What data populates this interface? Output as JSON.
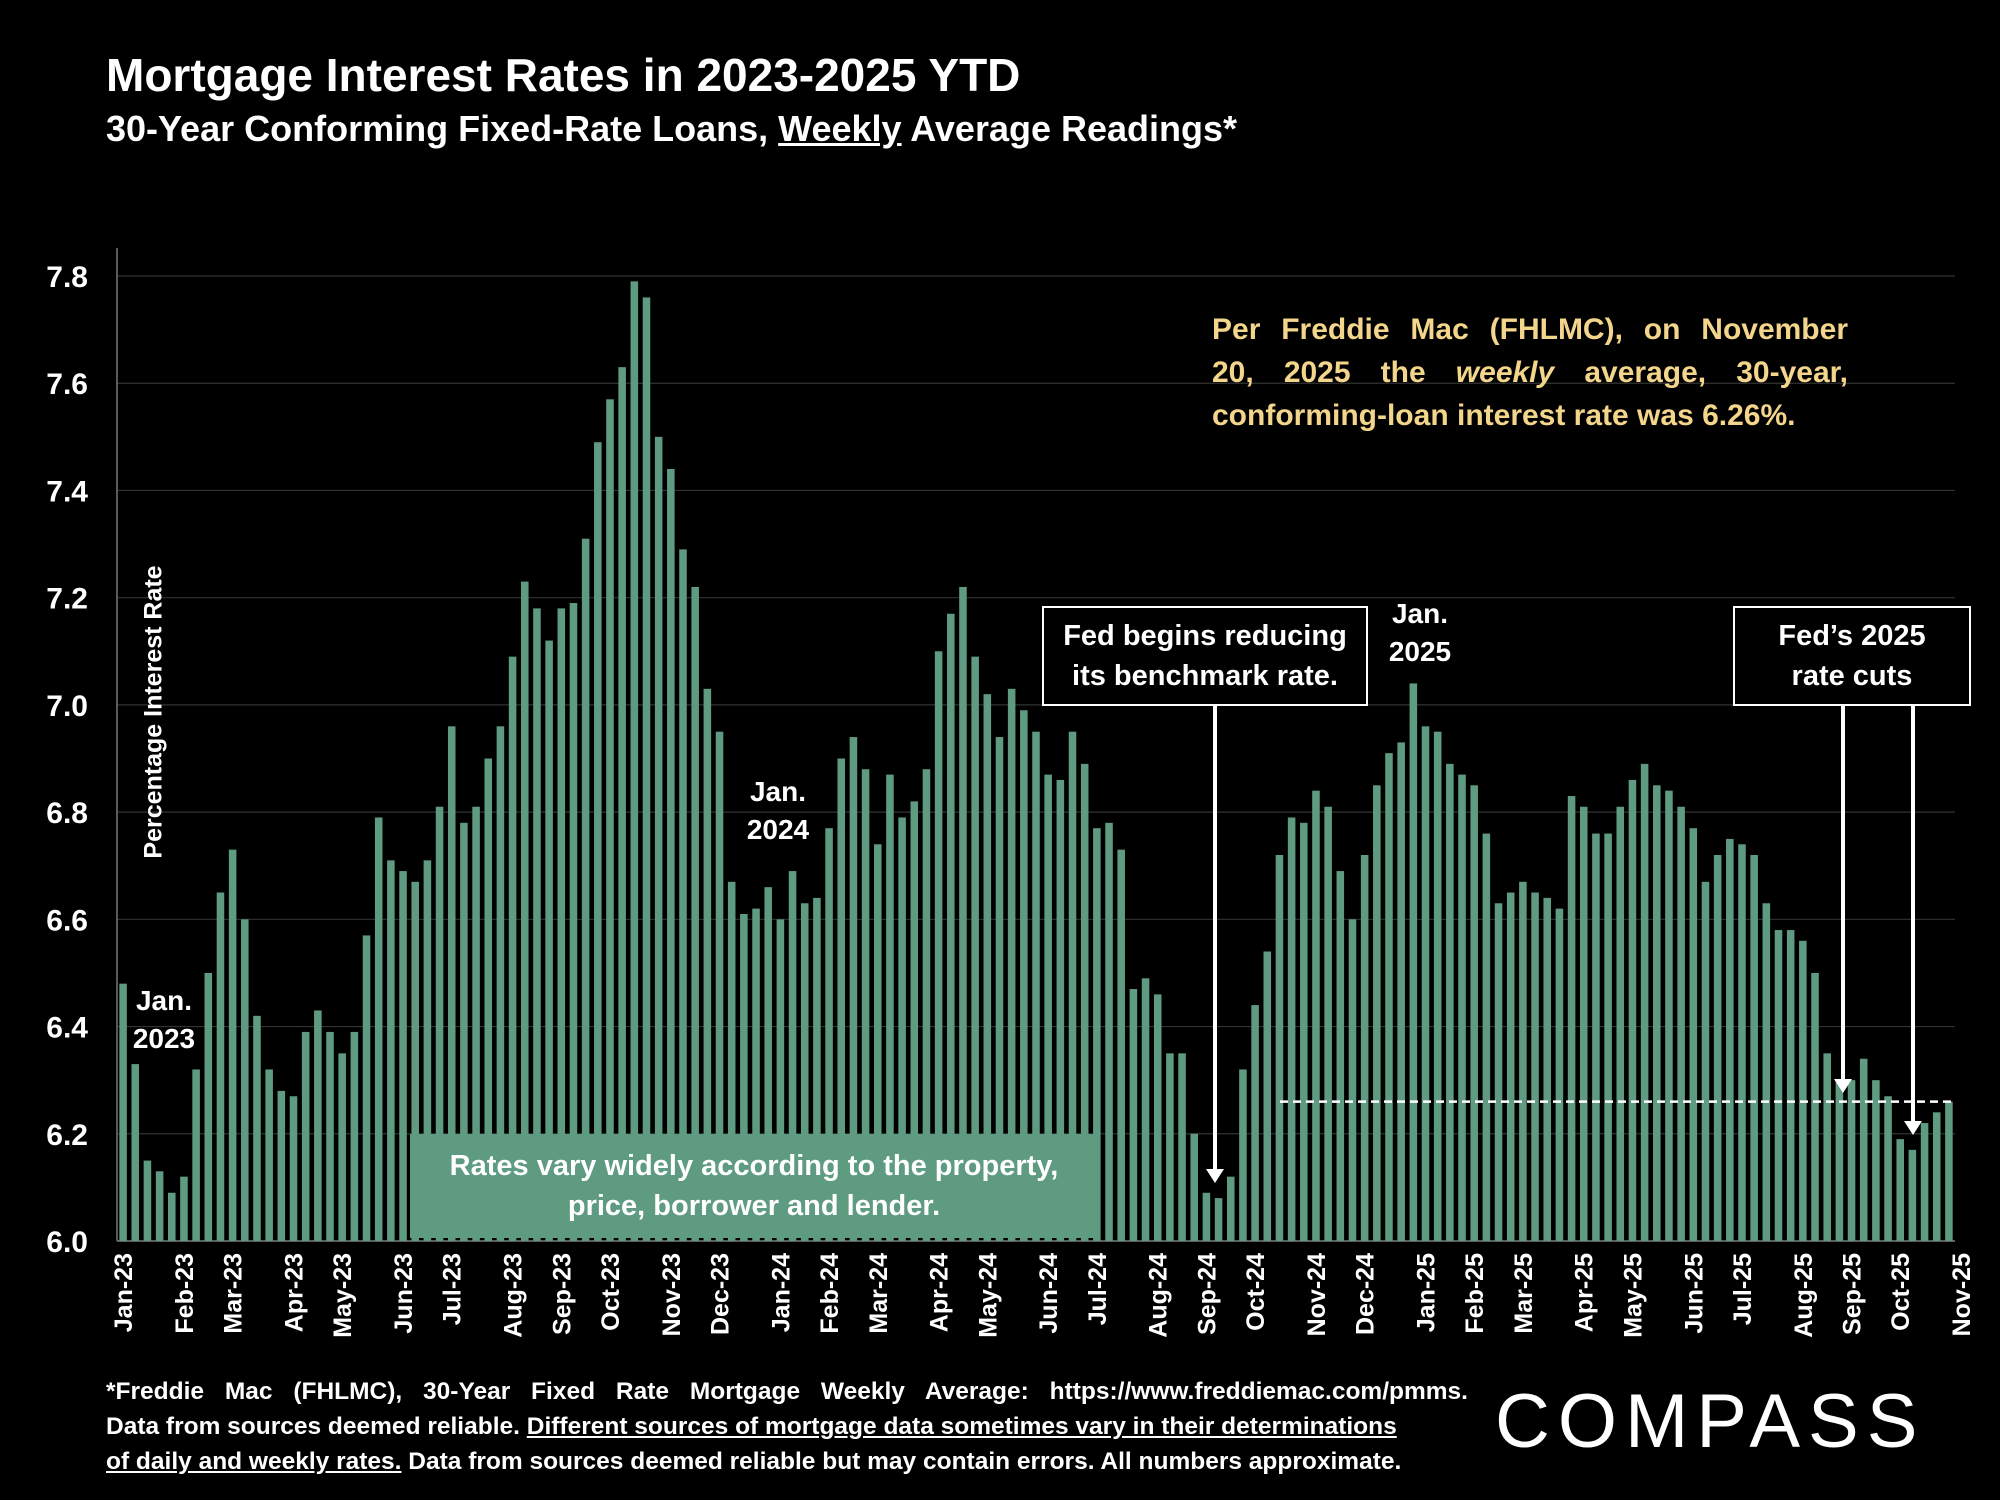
{
  "title": "Mortgage Interest Rates in 2023-2025 YTD",
  "subtitle": {
    "before": "30-Year Conforming Fixed-Rate Loans,",
    "underlined": "Weekly",
    "after": "Average Readings*"
  },
  "callout": {
    "line1": "Per Freddie Mac (FHLMC), on November",
    "line2_a": "20, 2025 the",
    "line2_em": "weekly",
    "line2_b": "average, 30-year,",
    "line3": "conforming-loan interest rate was 6.26%."
  },
  "fed_begins_box": {
    "line1": "Fed begins reducing",
    "line2": "its benchmark rate."
  },
  "fed_cuts_box": {
    "line1": "Fed’s 2025",
    "line2": "rate cuts"
  },
  "rates_note": {
    "line1": "Rates vary widely according to the property,",
    "line2": "price, borrower and lender."
  },
  "year_labels": {
    "y2023": {
      "line1": "Jan.",
      "line2": "2023"
    },
    "y2024": {
      "line1": "Jan.",
      "line2": "2024"
    },
    "y2025": {
      "line1": "Jan.",
      "line2": "2025"
    }
  },
  "footer": {
    "line1": "*Freddie Mac (FHLMC), 30-Year Fixed Rate Mortgage Weekly Average:  https://www.freddiemac.com/pmms.",
    "line2_a": "Data from sources deemed reliable.",
    "line2_u": "Different sources of mortgage data sometimes vary in their determinations",
    "line3_u": "of daily and weekly rates.",
    "line3_b": "Data from sources deemed reliable but may contain errors. All numbers approximate."
  },
  "logo": "COMPASS",
  "colors": {
    "bar": "#5e9b80",
    "background": "#000000",
    "callout": "#f3d58b",
    "grid": "#333333"
  },
  "chart_data": {
    "type": "bar",
    "title": "Mortgage Interest Rates in 2023-2025 YTD",
    "ylabel": "Percentage Interest  Rate",
    "xlabel": "",
    "ylim": [
      6.0,
      7.8
    ],
    "yticks": [
      "6.0",
      "6.2",
      "6.4",
      "6.6",
      "6.8",
      "7.0",
      "7.2",
      "7.4",
      "7.6",
      "7.8"
    ],
    "grid": true,
    "x_tick_labels": [
      {
        "label": "Jan-23",
        "index": 0
      },
      {
        "label": "Feb-23",
        "index": 5
      },
      {
        "label": "Mar-23",
        "index": 9
      },
      {
        "label": "Apr-23",
        "index": 14
      },
      {
        "label": "May-23",
        "index": 18
      },
      {
        "label": "Jun-23",
        "index": 23
      },
      {
        "label": "Jul-23",
        "index": 27
      },
      {
        "label": "Aug-23",
        "index": 32
      },
      {
        "label": "Sep-23",
        "index": 36
      },
      {
        "label": "Oct-23",
        "index": 40
      },
      {
        "label": "Nov-23",
        "index": 45
      },
      {
        "label": "Dec-23",
        "index": 49
      },
      {
        "label": "Jan-24",
        "index": 54
      },
      {
        "label": "Feb-24",
        "index": 58
      },
      {
        "label": "Mar-24",
        "index": 62
      },
      {
        "label": "Apr-24",
        "index": 67
      },
      {
        "label": "May-24",
        "index": 71
      },
      {
        "label": "Jun-24",
        "index": 76
      },
      {
        "label": "Jul-24",
        "index": 80
      },
      {
        "label": "Aug-24",
        "index": 85
      },
      {
        "label": "Sep-24",
        "index": 89
      },
      {
        "label": "Oct-24",
        "index": 93
      },
      {
        "label": "Nov-24",
        "index": 98
      },
      {
        "label": "Dec-24",
        "index": 102
      },
      {
        "label": "Jan-25",
        "index": 107
      },
      {
        "label": "Feb-25",
        "index": 111
      },
      {
        "label": "Mar-25",
        "index": 115
      },
      {
        "label": "Apr-25",
        "index": 120
      },
      {
        "label": "May-25",
        "index": 124
      },
      {
        "label": "Jun-25",
        "index": 129
      },
      {
        "label": "Jul-25",
        "index": 133
      },
      {
        "label": "Aug-25",
        "index": 138
      },
      {
        "label": "Sep-25",
        "index": 142
      },
      {
        "label": "Oct-25",
        "index": 146
      },
      {
        "label": "Nov-25",
        "index": 151
      }
    ],
    "series": [
      {
        "values": [
          6.48,
          6.33,
          6.15,
          6.13,
          6.09,
          6.12,
          6.32,
          6.5,
          6.65,
          6.73,
          6.6,
          6.42,
          6.32,
          6.28,
          6.27,
          6.39,
          6.43,
          6.39,
          6.35,
          6.39,
          6.57,
          6.79,
          6.71,
          6.69,
          6.67,
          6.71,
          6.81,
          6.96,
          6.78,
          6.81,
          6.9,
          6.96,
          7.09,
          7.23,
          7.18,
          7.12,
          7.18,
          7.19,
          7.31,
          7.49,
          7.57,
          7.63,
          7.79,
          7.76,
          7.5,
          7.44,
          7.29,
          7.22,
          7.03,
          6.95,
          6.67,
          6.61,
          6.62,
          6.66,
          6.6,
          6.69,
          6.63,
          6.64,
          6.77,
          6.9,
          6.94,
          6.88,
          6.74,
          6.87,
          6.79,
          6.82,
          6.88,
          7.1,
          7.17,
          7.22,
          7.09,
          7.02,
          6.94,
          7.03,
          6.99,
          6.95,
          6.87,
          6.86,
          6.95,
          6.89,
          6.77,
          6.78,
          6.73,
          6.47,
          6.49,
          6.46,
          6.35,
          6.35,
          6.2,
          6.09,
          6.08,
          6.12,
          6.32,
          6.44,
          6.54,
          6.72,
          6.79,
          6.78,
          6.84,
          6.81,
          6.69,
          6.6,
          6.72,
          6.85,
          6.91,
          6.93,
          7.04,
          6.96,
          6.95,
          6.89,
          6.87,
          6.85,
          6.76,
          6.63,
          6.65,
          6.67,
          6.65,
          6.64,
          6.62,
          6.83,
          6.81,
          6.76,
          6.76,
          6.81,
          6.86,
          6.89,
          6.85,
          6.84,
          6.81,
          6.77,
          6.67,
          6.72,
          6.75,
          6.74,
          6.72,
          6.63,
          6.58,
          6.58,
          6.56,
          6.5,
          6.35,
          6.3,
          6.3,
          6.34,
          6.3,
          6.27,
          6.19,
          6.17,
          6.22,
          6.24,
          6.26
        ]
      }
    ],
    "reference_line": {
      "value": 6.26,
      "style": "dashed"
    },
    "annotations": [
      "Per Freddie Mac (FHLMC), on November 20, 2025 the weekly average, 30-year, conforming-loan interest rate was 6.26%.",
      "Fed begins reducing its benchmark rate.",
      "Fed’s 2025 rate cuts",
      "Rates vary widely according to the property, price, borrower and lender."
    ]
  }
}
